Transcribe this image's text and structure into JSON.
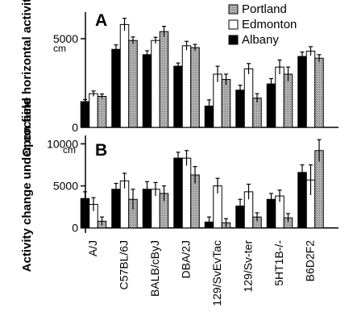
{
  "chart_data": [
    {
      "panel": "A",
      "type": "bar",
      "ylabel": "Open field horizontal activity",
      "yunit": "cm",
      "ylim": [
        0,
        6500
      ],
      "yticks": [
        "0",
        "5000"
      ],
      "categories": [
        "A/J",
        "C57BL/6J",
        "BALB/cByJ",
        "DBA/2J",
        "129/SvEvTac",
        "129/Sv-ter",
        "5HT1B-/-",
        "B6D2F2"
      ],
      "legend_position": "top-right",
      "series": [
        {
          "name": "Albany",
          "fill": "#000000",
          "values": [
            1450,
            4400,
            4100,
            3450,
            1200,
            2100,
            2450,
            4000
          ],
          "errors": [
            120,
            250,
            220,
            180,
            350,
            280,
            300,
            250
          ]
        },
        {
          "name": "Edmonton",
          "fill": "#ffffff",
          "values": [
            1900,
            5800,
            4900,
            4600,
            3000,
            3300,
            3400,
            4300
          ],
          "errors": [
            150,
            350,
            180,
            250,
            450,
            300,
            400,
            250
          ]
        },
        {
          "name": "Portland",
          "fill": "#a8a8a8",
          "values": [
            1750,
            4900,
            5400,
            4500,
            2700,
            1650,
            3000,
            3900
          ],
          "errors": [
            130,
            200,
            300,
            180,
            300,
            250,
            400,
            200
          ]
        }
      ]
    },
    {
      "panel": "B",
      "type": "bar",
      "ylabel": "Activity change under cocaine",
      "yunit": "cm",
      "ylim": [
        -600,
        11000
      ],
      "yticks": [
        "0",
        "5000",
        "10000"
      ],
      "categories": [
        "A/J",
        "C57BL/6J",
        "BALB/cByJ",
        "DBA/2J",
        "129/SvEvTac",
        "129/Sv-ter",
        "5HT1B-/-",
        "B6D2F2"
      ],
      "series": [
        {
          "name": "Albany",
          "fill": "#000000",
          "values": [
            3500,
            4600,
            4600,
            8300,
            700,
            2600,
            3400,
            6600
          ],
          "errors": [
            800,
            700,
            900,
            700,
            600,
            800,
            700,
            900
          ]
        },
        {
          "name": "Edmonton",
          "fill": "#ffffff",
          "values": [
            2800,
            5600,
            4600,
            8300,
            5000,
            4300,
            3800,
            5700
          ],
          "errors": [
            800,
            900,
            800,
            900,
            900,
            900,
            700,
            1800
          ]
        },
        {
          "name": "Portland",
          "fill": "#a8a8a8",
          "values": [
            800,
            3400,
            4100,
            6300,
            600,
            1300,
            1200,
            9200
          ],
          "errors": [
            500,
            1200,
            900,
            1000,
            500,
            500,
            500,
            1300
          ]
        }
      ]
    }
  ],
  "panel_labels": [
    "A",
    "B"
  ]
}
